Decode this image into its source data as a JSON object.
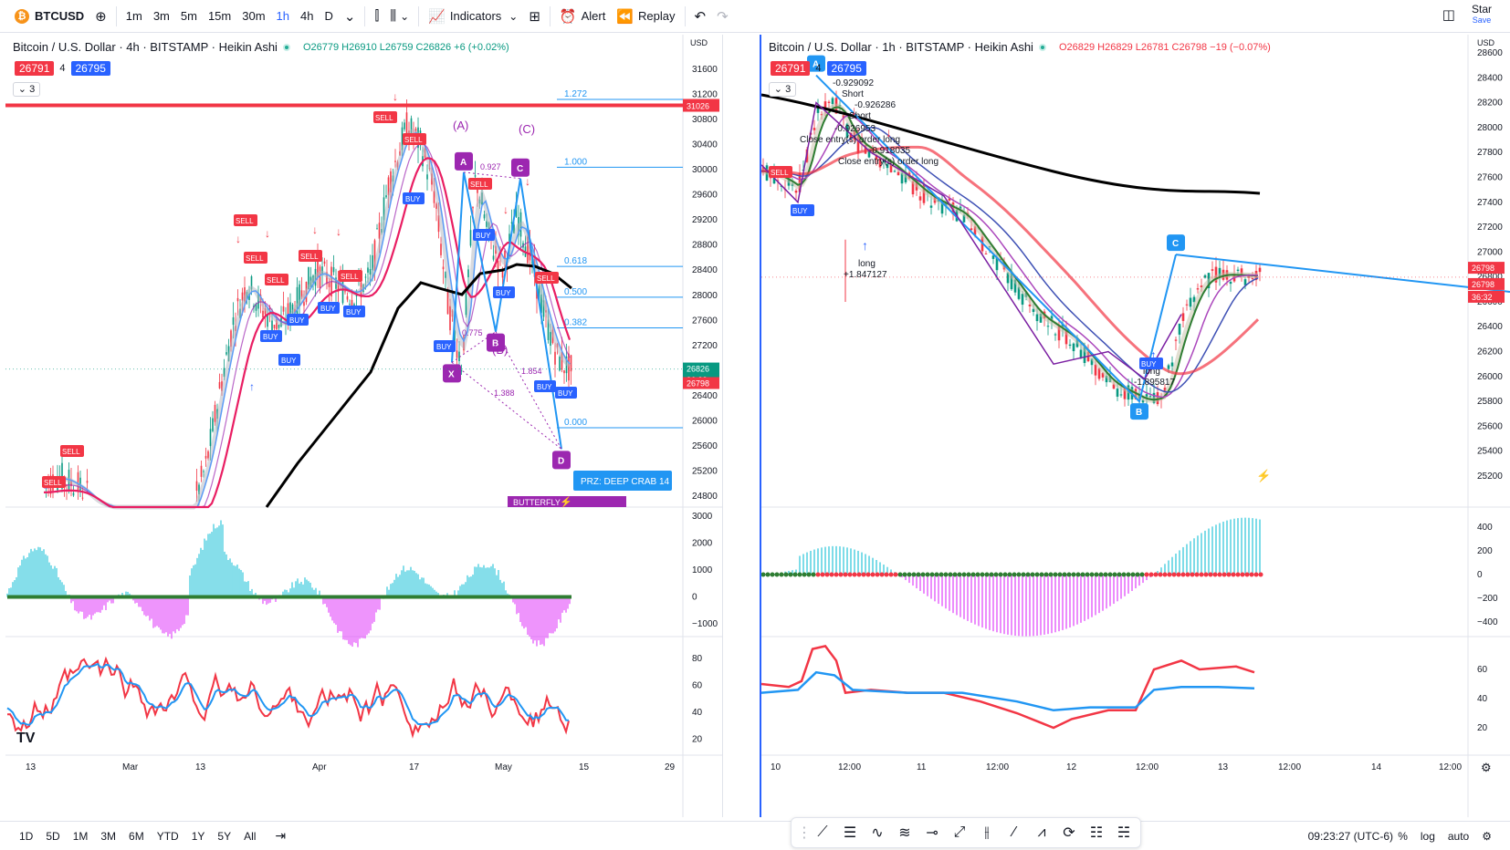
{
  "topbar": {
    "symbol": "BTCUSD",
    "timeframes": [
      "1m",
      "3m",
      "5m",
      "15m",
      "30m",
      "1h",
      "4h",
      "D"
    ],
    "active_timeframe": "1h",
    "indicators_label": "Indicators",
    "alert_label": "Alert",
    "replay_label": "Replay",
    "star_label": "Star",
    "save_label": "Save"
  },
  "left_chart": {
    "title": "Bitcoin / U.S. Dollar · 4h · BITSTAMP · Heikin Ashi",
    "ohlc": {
      "o": "O26779",
      "h": "H26910",
      "l": "L26759",
      "c": "C26826",
      "chg": "+6 (+0.02%)"
    },
    "bid": "26791",
    "spread": "4",
    "ask": "26795",
    "collapse": "3",
    "currency": "USD",
    "price_ticks": [
      "31600",
      "31200",
      "30800",
      "30400",
      "30000",
      "29600",
      "29200",
      "28800",
      "28400",
      "28000",
      "27600",
      "27200",
      "26800",
      "26400",
      "26000",
      "25600",
      "25200",
      "24800"
    ],
    "hline_tag": "31026",
    "price_tags": [
      "26826",
      "36:32",
      "26798"
    ],
    "fib": [
      {
        "label": "1.272",
        "level": 31120
      },
      {
        "label": "1.000",
        "level": 30040
      },
      {
        "label": "0.618",
        "level": 28460
      },
      {
        "label": "0.500",
        "level": 27970
      },
      {
        "label": "0.382",
        "level": 27480
      },
      {
        "label": "0.000",
        "level": 25890
      }
    ],
    "pattern_points": [
      {
        "label": "X",
        "x": 0.66,
        "y": 26930
      },
      {
        "label": "A",
        "x": 0.675,
        "y": 29960
      },
      {
        "label": "B",
        "x": 0.725,
        "y": 27420
      },
      {
        "label": "C",
        "x": 0.765,
        "y": 29860
      },
      {
        "label": "D",
        "x": 0.825,
        "y": 25550
      }
    ],
    "annotations": [
      "(A)",
      "(B)",
      "(C)",
      "0.927",
      "0.775",
      "1.854",
      "1.388",
      "PRZ: DEEP CRAB 14",
      "BUTTERFLY"
    ],
    "signal_labels": [
      "SELL",
      "BUY"
    ],
    "x_ticks": [
      "13",
      "Mar",
      "13",
      "Apr",
      "17",
      "May",
      "15",
      "29"
    ],
    "osc_ticks": [
      "3000",
      "2000",
      "1000",
      "0",
      "−1000"
    ],
    "rsi_ticks": [
      "80",
      "60",
      "40",
      "20"
    ]
  },
  "right_chart": {
    "title": "Bitcoin / U.S. Dollar · 1h · BITSTAMP · Heikin Ashi",
    "ohlc": {
      "o": "O26829",
      "h": "H26829",
      "l": "L26781",
      "c": "C26798",
      "chg": "−19 (−0.07%)"
    },
    "bid": "26791",
    "spread": "4",
    "ask": "26795",
    "collapse": "3",
    "currency": "USD",
    "price_ticks": [
      "28600",
      "28400",
      "28200",
      "28000",
      "27800",
      "27600",
      "27400",
      "27200",
      "27000",
      "26800",
      "26600",
      "26400",
      "26200",
      "26000",
      "25800",
      "25600",
      "25400",
      "25200"
    ],
    "price_tags": [
      "26798",
      "26798",
      "36:32"
    ],
    "pattern_points": [
      {
        "label": "A",
        "y": 28420
      },
      {
        "label": "B",
        "y": 25800
      },
      {
        "label": "C",
        "y": 26980
      }
    ],
    "annotations": [
      "-0.929092",
      "Short",
      "-0.926286",
      "Short",
      "-0.926953",
      "Close entry(s) order long",
      "-0.918035",
      "Close entry(s) order long",
      "long",
      "+1.847127",
      "long",
      "-1.895817"
    ],
    "signal_labels": [
      "SELL",
      "BUY",
      "BUY"
    ],
    "x_ticks": [
      "10",
      "12:00",
      "11",
      "12:00",
      "12",
      "12:00",
      "13",
      "12:00",
      "14",
      "12:00"
    ],
    "osc_ticks": [
      "400",
      "200",
      "0",
      "−200",
      "−400"
    ],
    "rsi_ticks": [
      "60",
      "40",
      "20"
    ]
  },
  "bottombar": {
    "ranges": [
      "1D",
      "5D",
      "1M",
      "3M",
      "6M",
      "YTD",
      "1Y",
      "5Y",
      "All"
    ],
    "clock": "09:23:27 (UTC-6)",
    "options": [
      "%",
      "log",
      "auto"
    ]
  },
  "colors": {
    "up": "#089981",
    "down": "#f23645",
    "accent": "#2962ff",
    "pattern": "#9c27b0",
    "fib": "#2196f3"
  }
}
